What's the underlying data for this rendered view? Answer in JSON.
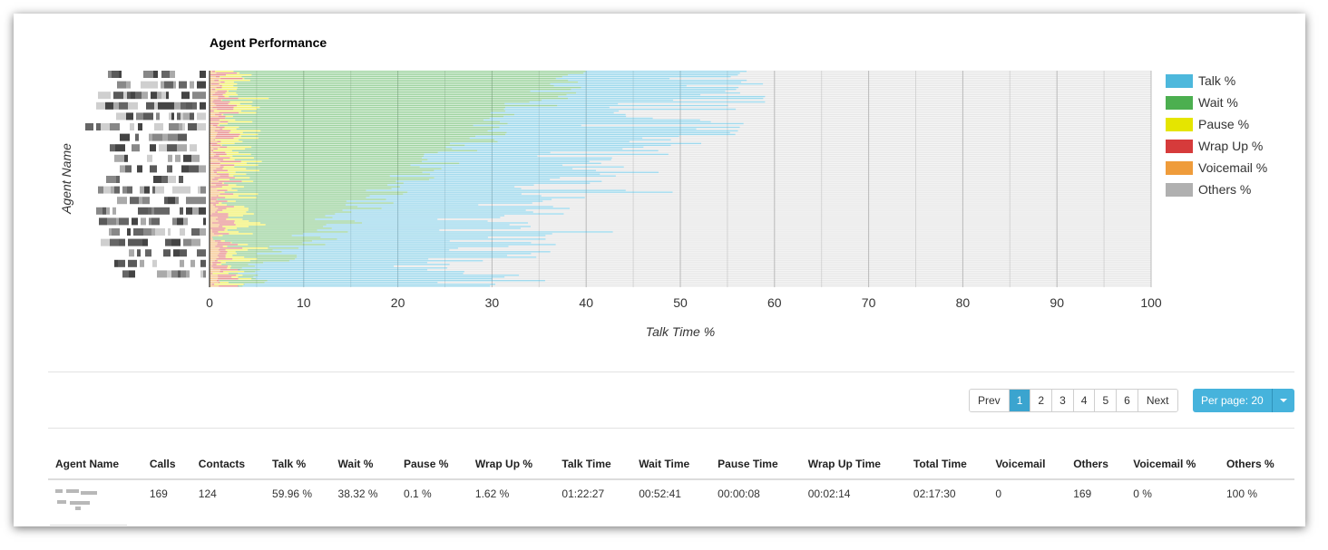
{
  "chart_data": {
    "type": "bar",
    "orientation": "horizontal",
    "stacked": true,
    "title": "Agent Performance",
    "xlabel": "Talk Time %",
    "ylabel": "Agent Name",
    "xlim": [
      0,
      100
    ],
    "x_ticks": [
      "0",
      "10",
      "20",
      "30",
      "40",
      "50",
      "60",
      "70",
      "80",
      "90",
      "100"
    ],
    "grid": true,
    "legend_position": "right",
    "bar_count": 120,
    "series": [
      {
        "name": "Talk %",
        "color": "#4db8dc",
        "approx_range": [
          35,
          58
        ]
      },
      {
        "name": "Wait %",
        "color": "#4caf50",
        "approx_range": [
          0,
          40
        ]
      },
      {
        "name": "Pause %",
        "color": "#e5e500",
        "approx_range": [
          0,
          4
        ]
      },
      {
        "name": "Wrap Up %",
        "color": "#d63b3b",
        "approx_range": [
          0,
          3
        ]
      },
      {
        "name": "Voicemail %",
        "color": "#ef9c3b",
        "approx_range": [
          0,
          2
        ]
      },
      {
        "name": "Others %",
        "color": "#b0b0b0",
        "approx_range": [
          0,
          100
        ]
      }
    ]
  },
  "pagination": {
    "prev": "Prev",
    "pages": [
      "1",
      "2",
      "3",
      "4",
      "5",
      "6"
    ],
    "active_page": "1",
    "next": "Next",
    "per_page": "Per page: 20"
  },
  "table": {
    "columns": [
      "Agent Name",
      "Calls",
      "Contacts",
      "Talk %",
      "Wait %",
      "Pause %",
      "Wrap Up %",
      "Talk Time",
      "Wait Time",
      "Pause Time",
      "Wrap Up Time",
      "Total Time",
      "Voicemail",
      "Others",
      "Voicemail %",
      "Others %"
    ],
    "rows": [
      [
        "",
        "169",
        "124",
        "59.96 %",
        "38.32 %",
        "0.1 %",
        "1.62 %",
        "01:22:27",
        "00:52:41",
        "00:00:08",
        "00:02:14",
        "02:17:30",
        "0",
        "169",
        "0 %",
        "100 %"
      ]
    ]
  }
}
